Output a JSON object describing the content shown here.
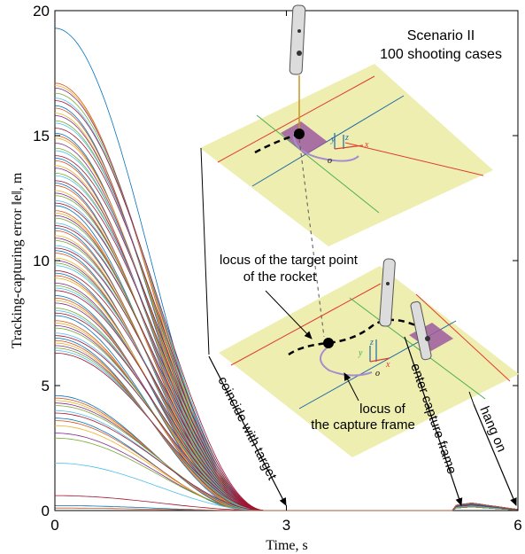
{
  "chart_data": {
    "type": "line",
    "title": "Scenario II",
    "subtitle": "100 shooting cases",
    "xlabel": "Time, s",
    "ylabel": "Tracking-capturing error ‖e‖, m",
    "xlim": [
      0,
      6
    ],
    "ylim": [
      0,
      20
    ],
    "xticks": [
      "0",
      "3",
      "6"
    ],
    "yticks": [
      "0",
      "5",
      "10",
      "15",
      "20"
    ],
    "grid": false,
    "legend": "none",
    "series_description_count": 100,
    "initial_errors": [
      19.3,
      17.1,
      17.0,
      16.9,
      16.7,
      16.5,
      16.4,
      16.2,
      16.1,
      15.9,
      15.8,
      15.6,
      15.5,
      15.3,
      15.1,
      15.0,
      14.9,
      14.7,
      14.5,
      14.4,
      14.2,
      14.1,
      14.0,
      13.8,
      13.7,
      13.5,
      13.4,
      13.2,
      13.1,
      13.0,
      12.8,
      12.7,
      12.6,
      12.4,
      12.3,
      12.2,
      12.0,
      11.9,
      11.8,
      11.7,
      11.5,
      11.4,
      11.3,
      11.2,
      11.0,
      10.9,
      10.8,
      10.6,
      10.5,
      10.4,
      10.3,
      10.1,
      10.0,
      9.9,
      9.8,
      9.6,
      9.5,
      9.4,
      9.3,
      9.1,
      9.0,
      8.9,
      8.8,
      8.6,
      8.5,
      8.4,
      8.3,
      8.1,
      8.0,
      7.9,
      7.8,
      7.6,
      7.5,
      7.4,
      7.3,
      7.1,
      7.0,
      6.9,
      6.8,
      6.7,
      6.6,
      6.5,
      6.4,
      6.3,
      4.6,
      4.5,
      4.4,
      4.3,
      4.2,
      4.0,
      3.9,
      3.7,
      3.6,
      3.4,
      3.1,
      2.9,
      1.9,
      0.6,
      0.2,
      0.1
    ],
    "phases": [
      {
        "t": 3,
        "label": "coincide with target"
      },
      {
        "t": 5.3,
        "label": "enter capture frame"
      },
      {
        "t": 6,
        "label": "hang on"
      }
    ],
    "bump_after_capture": {
      "t_start": 5.2,
      "t_peak": 5.4,
      "peak_error": 0.3,
      "t_end": 6
    }
  },
  "annotations": {
    "arrow_coincide": "coincide with target",
    "arrow_enter": "enter capture frame",
    "arrow_hang": "hang on",
    "locus_target_line1": "locus of  the  target point",
    "locus_target_line2": "of the rocket",
    "locus_frame_line1": "locus of",
    "locus_frame_line2": "the capture frame"
  },
  "inset": {
    "axis_x": "x",
    "axis_y": "y",
    "axis_z": "z",
    "origin": "o"
  },
  "colors": {
    "plane_fill": "#eeeeb0",
    "capture_frame": "#9b5aa0",
    "locus_frame_curve": "#a78bd0",
    "red_line": "#e23b2e",
    "blue_line": "#1f6aa8",
    "green_line": "#4caf50"
  }
}
